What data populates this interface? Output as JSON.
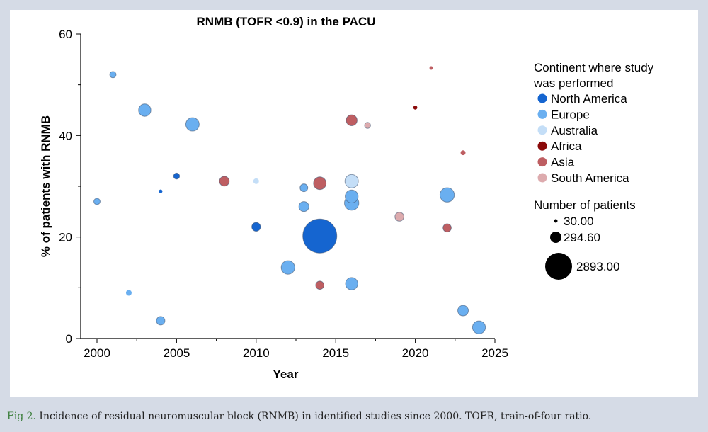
{
  "caption": {
    "label": "Fig 2.",
    "text": "Incidence of residual neuromuscular block (RNMB) in identified studies since 2000. TOFR, train-of-four ratio."
  },
  "chart_data": {
    "type": "scatter",
    "title": "RNMB (TOFR <0.9) in the PACU",
    "xlabel": "Year",
    "ylabel": "% of patients with RNMB",
    "xlim": [
      1999,
      2025
    ],
    "ylim": [
      0,
      60
    ],
    "x_ticks": [
      2000,
      2005,
      2010,
      2015,
      2020,
      2025
    ],
    "y_ticks": [
      0,
      20,
      40,
      60
    ],
    "grid": false,
    "legend_position": "right",
    "color_legend": {
      "title_lines": [
        "Continent where study",
        "was performed"
      ],
      "items": [
        {
          "name": "North America",
          "color": "#1565d0"
        },
        {
          "name": "Europe",
          "color": "#6aaff0"
        },
        {
          "name": "Australia",
          "color": "#c4def7"
        },
        {
          "name": "Africa",
          "color": "#8b0a0a"
        },
        {
          "name": "Asia",
          "color": "#be5e62"
        },
        {
          "name": "South America",
          "color": "#ddabae"
        }
      ]
    },
    "size_legend": {
      "title": "Number of patients",
      "items": [
        {
          "label": "30.00",
          "value": 30
        },
        {
          "label": "294.60",
          "value": 294.6
        },
        {
          "label": "2893.00",
          "value": 2893
        }
      ]
    },
    "points": [
      {
        "x": 2000,
        "y": 27,
        "n": 100,
        "continent": "Europe"
      },
      {
        "x": 2001,
        "y": 52,
        "n": 100,
        "continent": "Europe"
      },
      {
        "x": 2002,
        "y": 9,
        "n": 80,
        "continent": "Europe"
      },
      {
        "x": 2003,
        "y": 45,
        "n": 380,
        "continent": "Europe"
      },
      {
        "x": 2004,
        "y": 29,
        "n": 30,
        "continent": "North America"
      },
      {
        "x": 2004,
        "y": 3.5,
        "n": 180,
        "continent": "Europe"
      },
      {
        "x": 2005,
        "y": 32,
        "n": 90,
        "continent": "North America"
      },
      {
        "x": 2006,
        "y": 42.2,
        "n": 450,
        "continent": "Europe"
      },
      {
        "x": 2008,
        "y": 31,
        "n": 240,
        "continent": "Asia"
      },
      {
        "x": 2010,
        "y": 31,
        "n": 80,
        "continent": "Australia"
      },
      {
        "x": 2010,
        "y": 22,
        "n": 190,
        "continent": "North America"
      },
      {
        "x": 2012,
        "y": 14,
        "n": 460,
        "continent": "Europe"
      },
      {
        "x": 2013,
        "y": 29.7,
        "n": 150,
        "continent": "Europe"
      },
      {
        "x": 2013,
        "y": 26,
        "n": 250,
        "continent": "Europe"
      },
      {
        "x": 2014,
        "y": 30.6,
        "n": 400,
        "continent": "Asia"
      },
      {
        "x": 2014,
        "y": 20.2,
        "n": 2893,
        "continent": "North America"
      },
      {
        "x": 2014,
        "y": 10.5,
        "n": 170,
        "continent": "Asia"
      },
      {
        "x": 2016,
        "y": 43,
        "n": 300,
        "continent": "Asia"
      },
      {
        "x": 2016,
        "y": 31,
        "n": 450,
        "continent": "Australia"
      },
      {
        "x": 2016,
        "y": 28,
        "n": 420,
        "continent": "Europe"
      },
      {
        "x": 2016,
        "y": 26.7,
        "n": 520,
        "continent": "Europe"
      },
      {
        "x": 2016,
        "y": 10.8,
        "n": 380,
        "continent": "Europe"
      },
      {
        "x": 2017,
        "y": 42,
        "n": 90,
        "continent": "South America"
      },
      {
        "x": 2019,
        "y": 24,
        "n": 200,
        "continent": "South America"
      },
      {
        "x": 2020,
        "y": 45.5,
        "n": 40,
        "continent": "Africa"
      },
      {
        "x": 2021,
        "y": 53.3,
        "n": 25,
        "continent": "Asia"
      },
      {
        "x": 2022,
        "y": 28.3,
        "n": 520,
        "continent": "Europe"
      },
      {
        "x": 2022,
        "y": 21.8,
        "n": 170,
        "continent": "Asia"
      },
      {
        "x": 2023,
        "y": 36.6,
        "n": 60,
        "continent": "Asia"
      },
      {
        "x": 2023,
        "y": 5.5,
        "n": 280,
        "continent": "Europe"
      },
      {
        "x": 2024,
        "y": 2.2,
        "n": 420,
        "continent": "Europe"
      }
    ]
  }
}
